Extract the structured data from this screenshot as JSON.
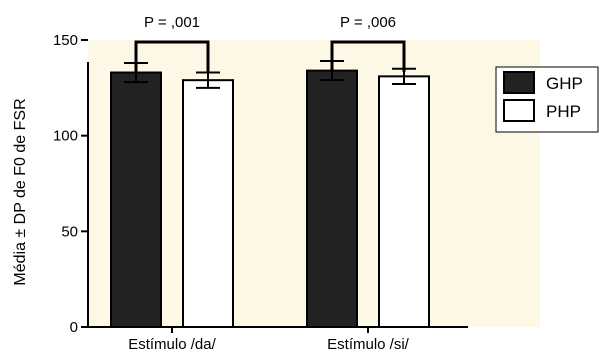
{
  "chart_data": {
    "type": "bar",
    "categories": [
      "Estímulo /da/",
      "Estímulo /si/"
    ],
    "series": [
      {
        "name": "GHP",
        "values": [
          133,
          134
        ],
        "errors": [
          5,
          5
        ],
        "color": "#222222"
      },
      {
        "name": "PHP",
        "values": [
          129,
          131
        ],
        "errors": [
          4,
          4
        ],
        "color": "#ffffff"
      }
    ],
    "xlabel": "",
    "ylabel": "Média ± DP de F0 de FSR",
    "ylim": [
      0,
      150
    ],
    "yticks": [
      0,
      50,
      100,
      150
    ],
    "grid": false,
    "legend_position": "right",
    "background_color": "#fdf8e6",
    "annotations": [
      {
        "text": "P = ,001",
        "category": 0
      },
      {
        "text": "P = ,006",
        "category": 1
      }
    ]
  }
}
